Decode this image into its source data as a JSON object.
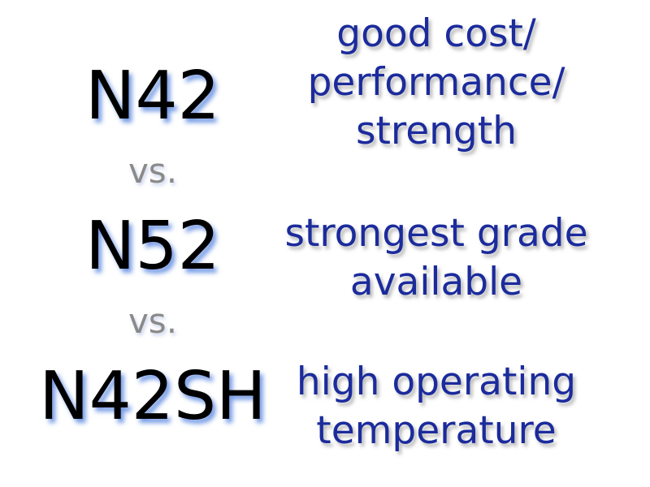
{
  "rows": [
    {
      "grade": "N42",
      "description": [
        "good cost/",
        "performance/",
        "strength"
      ]
    },
    {
      "grade": "N52",
      "description": [
        "strongest grade",
        "available"
      ]
    },
    {
      "grade": "N42SH",
      "description": [
        "high operating",
        "temperature"
      ]
    }
  ],
  "separator": "vs.",
  "colors": {
    "grade_text": "#000000",
    "description_text": "#1b2b9c",
    "separator_text": "#8a8a8a",
    "grade_glow": "#4678dc"
  }
}
